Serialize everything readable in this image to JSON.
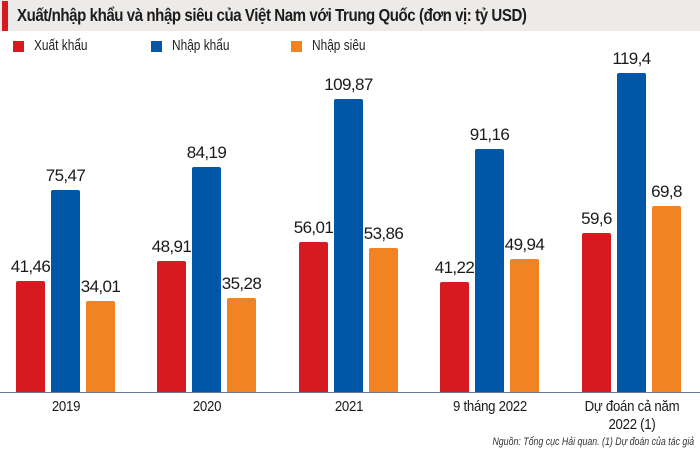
{
  "header": {
    "title": "Xuất/nhập khẩu và nhập siêu của Việt Nam với Trung Quốc (đơn vị: tỷ USD)",
    "accent_color": "#d71920"
  },
  "legend": [
    {
      "label": "Xuất khẩu",
      "color": "#d71920"
    },
    {
      "label": "Nhập khẩu",
      "color": "#0057a8"
    },
    {
      "label": "Nhập siêu",
      "color": "#f28322"
    }
  ],
  "categories": [
    {
      "line1": "2019",
      "line2": ""
    },
    {
      "line1": "2020",
      "line2": ""
    },
    {
      "line1": "2021",
      "line2": ""
    },
    {
      "line1": "9 tháng 2022",
      "line2": ""
    },
    {
      "line1": "Dự đoán cả năm",
      "line2": "2022 (1)"
    }
  ],
  "labels": {
    "xk": [
      "41,46",
      "48,91",
      "56,01",
      "41,22",
      "59,6"
    ],
    "nk": [
      "75,47",
      "84,19",
      "109,87",
      "91,16",
      "119,4"
    ],
    "ns": [
      "34,01",
      "35,28",
      "53,86",
      "49,94",
      "69,8"
    ]
  },
  "source": "Nguồn: Tổng cục Hải quan. (1) Dự đoán của tác giả",
  "chart_data": {
    "type": "bar",
    "title": "Xuất/nhập khẩu và nhập siêu của Việt Nam với Trung Quốc (đơn vị: tỷ USD)",
    "categories": [
      "2019",
      "2020",
      "2021",
      "9 tháng 2022",
      "Dự đoán cả năm 2022 (1)"
    ],
    "series": [
      {
        "name": "Xuất khẩu",
        "color": "#d71920",
        "values": [
          41.46,
          48.91,
          56.01,
          41.22,
          59.6
        ]
      },
      {
        "name": "Nhập khẩu",
        "color": "#0057a8",
        "values": [
          75.47,
          84.19,
          109.87,
          91.16,
          119.4
        ]
      },
      {
        "name": "Nhập siêu",
        "color": "#f28322",
        "values": [
          34.01,
          35.28,
          53.86,
          49.94,
          69.8
        ]
      }
    ],
    "xlabel": "",
    "ylabel": "tỷ USD",
    "ylim": [
      0,
      125
    ],
    "grid": false,
    "legend_position": "top-left",
    "data_labels": true,
    "source": "Nguồn: Tổng cục Hải quan. (1) Dự đoán của tác giả"
  }
}
